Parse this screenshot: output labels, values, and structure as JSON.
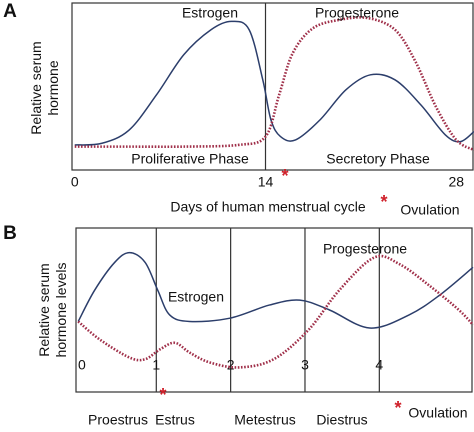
{
  "chart_data": [
    {
      "type": "line",
      "panel": "A",
      "ylabel": "Relative serum hormone",
      "xlabel": "Days of human menstrual cycle",
      "xlim": [
        -0.2,
        29.3
      ],
      "ylim": [
        0,
        1
      ],
      "xticks": [
        0,
        14,
        28
      ],
      "dividers": [
        14
      ],
      "regions": [
        "Proliferative Phase",
        "Secretory Phase"
      ],
      "marker": "*",
      "marker_label": "Ovulation",
      "series": [
        {
          "name": "Estrogen",
          "color": "#2c3e6b",
          "style": "solid",
          "x": [
            0,
            2,
            4,
            6,
            8,
            10,
            11.5,
            12.8,
            13.8,
            14.4,
            15.1,
            16.2,
            18,
            19.9,
            21.7,
            23.5,
            25.4,
            27.2,
            28.3,
            29.3
          ],
          "values": [
            0.15,
            0.16,
            0.24,
            0.45,
            0.69,
            0.84,
            0.89,
            0.84,
            0.54,
            0.3,
            0.2,
            0.18,
            0.3,
            0.48,
            0.57,
            0.54,
            0.39,
            0.21,
            0.17,
            0.23
          ]
        },
        {
          "name": "Progesterone",
          "color": "#a0304a",
          "style": "dotted",
          "x": [
            0,
            4,
            8,
            12,
            14,
            15,
            16,
            17.5,
            19.5,
            21.5,
            23.5,
            25,
            26.5,
            28,
            29.3
          ],
          "values": [
            0.14,
            0.14,
            0.14,
            0.15,
            0.2,
            0.45,
            0.7,
            0.85,
            0.9,
            0.91,
            0.84,
            0.65,
            0.38,
            0.18,
            0.12
          ]
        }
      ]
    },
    {
      "type": "line",
      "panel": "B",
      "ylabel": "Relative serum hormone levels",
      "xlim": [
        -0.08,
        5.26
      ],
      "ylim": [
        0,
        1
      ],
      "xticks": [
        0,
        1,
        2,
        3,
        4
      ],
      "dividers": [
        1,
        2,
        3,
        4
      ],
      "regions": [
        "Proestrus",
        "Estrus",
        "Metestrus",
        "Diestrus"
      ],
      "marker": "*",
      "marker_label": "Ovulation",
      "series": [
        {
          "name": "Estrogen",
          "color": "#2c3e6b",
          "style": "solid",
          "x": [
            -0.05,
            0.17,
            0.44,
            0.64,
            0.85,
            1.02,
            1.18,
            1.45,
            1.99,
            2.52,
            2.93,
            3.33,
            3.87,
            4.4,
            4.81,
            5.26
          ],
          "values": [
            0.43,
            0.62,
            0.79,
            0.85,
            0.79,
            0.62,
            0.47,
            0.43,
            0.45,
            0.53,
            0.56,
            0.5,
            0.39,
            0.47,
            0.59,
            0.76
          ]
        },
        {
          "name": "Progesterone",
          "color": "#a0304a",
          "style": "dotted",
          "x": [
            -0.05,
            0.24,
            0.64,
            0.85,
            1.05,
            1.25,
            1.45,
            1.72,
            2.12,
            2.58,
            3.05,
            3.46,
            3.93,
            4.27,
            4.67,
            5.07,
            5.26
          ],
          "values": [
            0.43,
            0.32,
            0.21,
            0.2,
            0.26,
            0.3,
            0.24,
            0.18,
            0.15,
            0.2,
            0.38,
            0.62,
            0.82,
            0.78,
            0.65,
            0.5,
            0.41
          ]
        }
      ]
    }
  ]
}
